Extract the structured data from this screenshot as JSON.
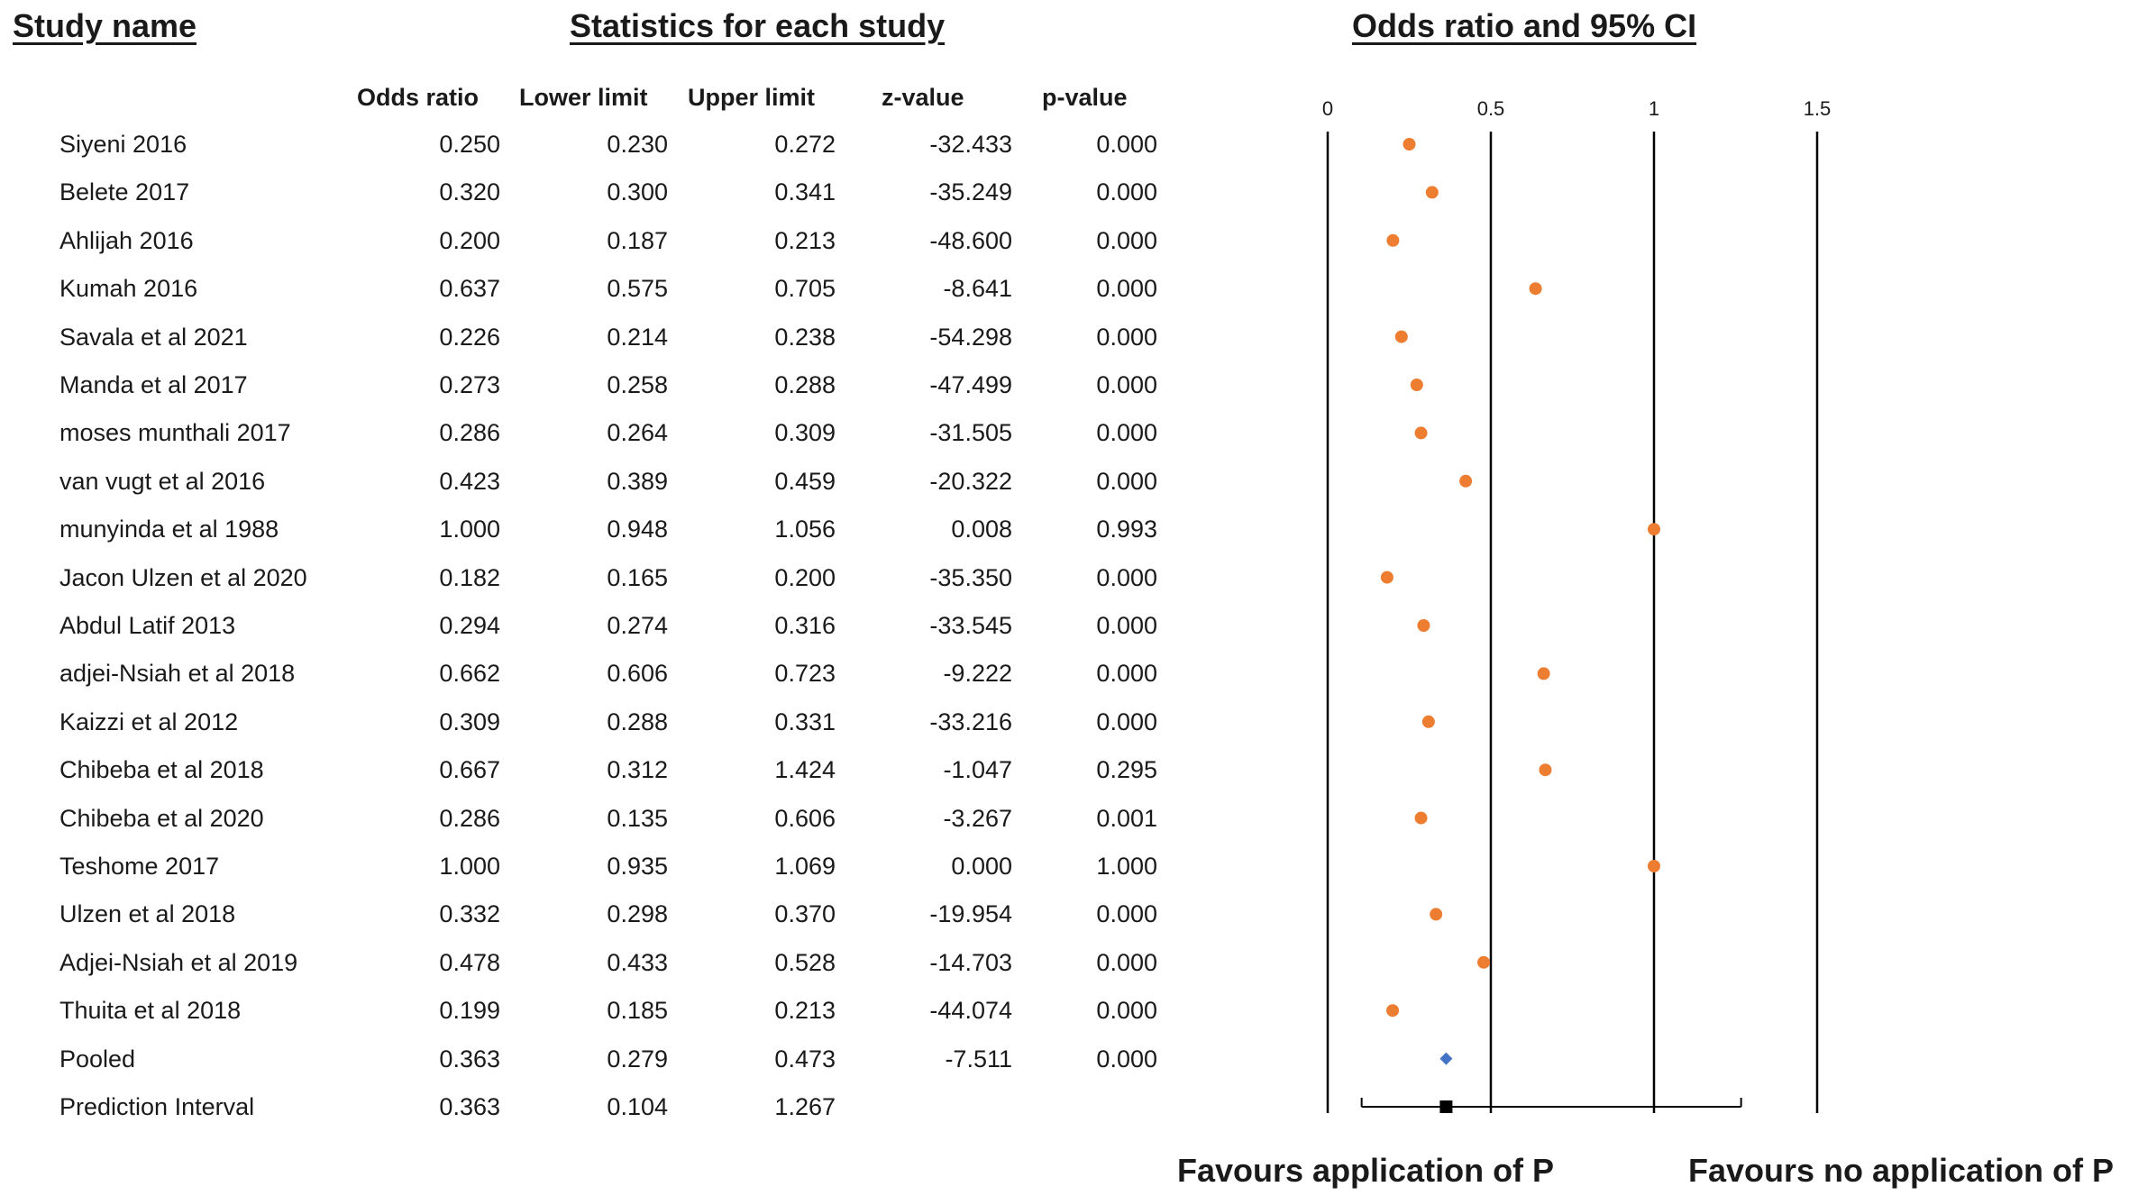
{
  "headers": {
    "study_name": "Study name",
    "statistics": "Statistics for each study",
    "forest": "Odds ratio and 95% CI"
  },
  "columns": {
    "odds_ratio": "Odds ratio",
    "lower_limit": "Lower limit",
    "upper_limit": "Upper limit",
    "z_value": "z-value",
    "p_value": "p-value"
  },
  "favours": {
    "left": "Favours application of P",
    "right": "Favours no application of P"
  },
  "colors": {
    "study_marker": "#ED7D31",
    "pooled_marker": "#4472C4",
    "prediction_marker": "#000000",
    "axis_line": "#000000"
  },
  "chart_data": {
    "type": "scatter",
    "title": "Odds ratio and 95% CI",
    "x_ticks": [
      "0",
      "0.5",
      "1",
      "1.5"
    ],
    "x_tick_values": [
      0,
      0.5,
      1,
      1.5
    ],
    "xlim": [
      0,
      1.5
    ],
    "reference_lines": [
      0,
      0.5,
      1,
      1.5
    ],
    "studies": [
      {
        "name": "Siyeni 2016",
        "or": "0.250",
        "lower": "0.230",
        "upper": "0.272",
        "z": "-32.433",
        "p": "0.000",
        "value": 0.25
      },
      {
        "name": "Belete 2017",
        "or": "0.320",
        "lower": "0.300",
        "upper": "0.341",
        "z": "-35.249",
        "p": "0.000",
        "value": 0.32
      },
      {
        "name": "Ahlijah 2016",
        "or": "0.200",
        "lower": "0.187",
        "upper": "0.213",
        "z": "-48.600",
        "p": "0.000",
        "value": 0.2
      },
      {
        "name": "Kumah 2016",
        "or": "0.637",
        "lower": "0.575",
        "upper": "0.705",
        "z": "-8.641",
        "p": "0.000",
        "value": 0.637
      },
      {
        "name": "Savala et al 2021",
        "or": "0.226",
        "lower": "0.214",
        "upper": "0.238",
        "z": "-54.298",
        "p": "0.000",
        "value": 0.226
      },
      {
        "name": "Manda et al 2017",
        "or": "0.273",
        "lower": "0.258",
        "upper": "0.288",
        "z": "-47.499",
        "p": "0.000",
        "value": 0.273
      },
      {
        "name": "moses munthali 2017",
        "or": "0.286",
        "lower": "0.264",
        "upper": "0.309",
        "z": "-31.505",
        "p": "0.000",
        "value": 0.286
      },
      {
        "name": "van vugt et al 2016",
        "or": "0.423",
        "lower": "0.389",
        "upper": "0.459",
        "z": "-20.322",
        "p": "0.000",
        "value": 0.423
      },
      {
        "name": "munyinda et al 1988",
        "or": "1.000",
        "lower": "0.948",
        "upper": "1.056",
        "z": "0.008",
        "p": "0.993",
        "value": 1.0
      },
      {
        "name": "Jacon Ulzen et al 2020",
        "or": "0.182",
        "lower": "0.165",
        "upper": "0.200",
        "z": "-35.350",
        "p": "0.000",
        "value": 0.182
      },
      {
        "name": "Abdul Latif 2013",
        "or": "0.294",
        "lower": "0.274",
        "upper": "0.316",
        "z": "-33.545",
        "p": "0.000",
        "value": 0.294
      },
      {
        "name": "adjei-Nsiah et al 2018",
        "or": "0.662",
        "lower": "0.606",
        "upper": "0.723",
        "z": "-9.222",
        "p": "0.000",
        "value": 0.662
      },
      {
        "name": "Kaizzi et al 2012",
        "or": "0.309",
        "lower": "0.288",
        "upper": "0.331",
        "z": "-33.216",
        "p": "0.000",
        "value": 0.309
      },
      {
        "name": "Chibeba et al 2018",
        "or": "0.667",
        "lower": "0.312",
        "upper": "1.424",
        "z": "-1.047",
        "p": "0.295",
        "value": 0.667
      },
      {
        "name": "Chibeba et al 2020",
        "or": "0.286",
        "lower": "0.135",
        "upper": "0.606",
        "z": "-3.267",
        "p": "0.001",
        "value": 0.286
      },
      {
        "name": "Teshome 2017",
        "or": "1.000",
        "lower": "0.935",
        "upper": "1.069",
        "z": "0.000",
        "p": "1.000",
        "value": 1.0
      },
      {
        "name": "Ulzen et al 2018",
        "or": "0.332",
        "lower": "0.298",
        "upper": "0.370",
        "z": "-19.954",
        "p": "0.000",
        "value": 0.332
      },
      {
        "name": "Adjei-Nsiah et al 2019",
        "or": "0.478",
        "lower": "0.433",
        "upper": "0.528",
        "z": "-14.703",
        "p": "0.000",
        "value": 0.478
      },
      {
        "name": "Thuita et al 2018",
        "or": "0.199",
        "lower": "0.185",
        "upper": "0.213",
        "z": "-44.074",
        "p": "0.000",
        "value": 0.199
      }
    ],
    "pooled": {
      "name": "Pooled",
      "or": "0.363",
      "lower": "0.279",
      "upper": "0.473",
      "z": "-7.511",
      "p": "0.000",
      "value": 0.363
    },
    "prediction_interval": {
      "name": "Prediction Interval",
      "or": "0.363",
      "lower": "0.104",
      "upper": "1.267",
      "value": 0.363,
      "low": 0.104,
      "high": 1.267
    }
  }
}
